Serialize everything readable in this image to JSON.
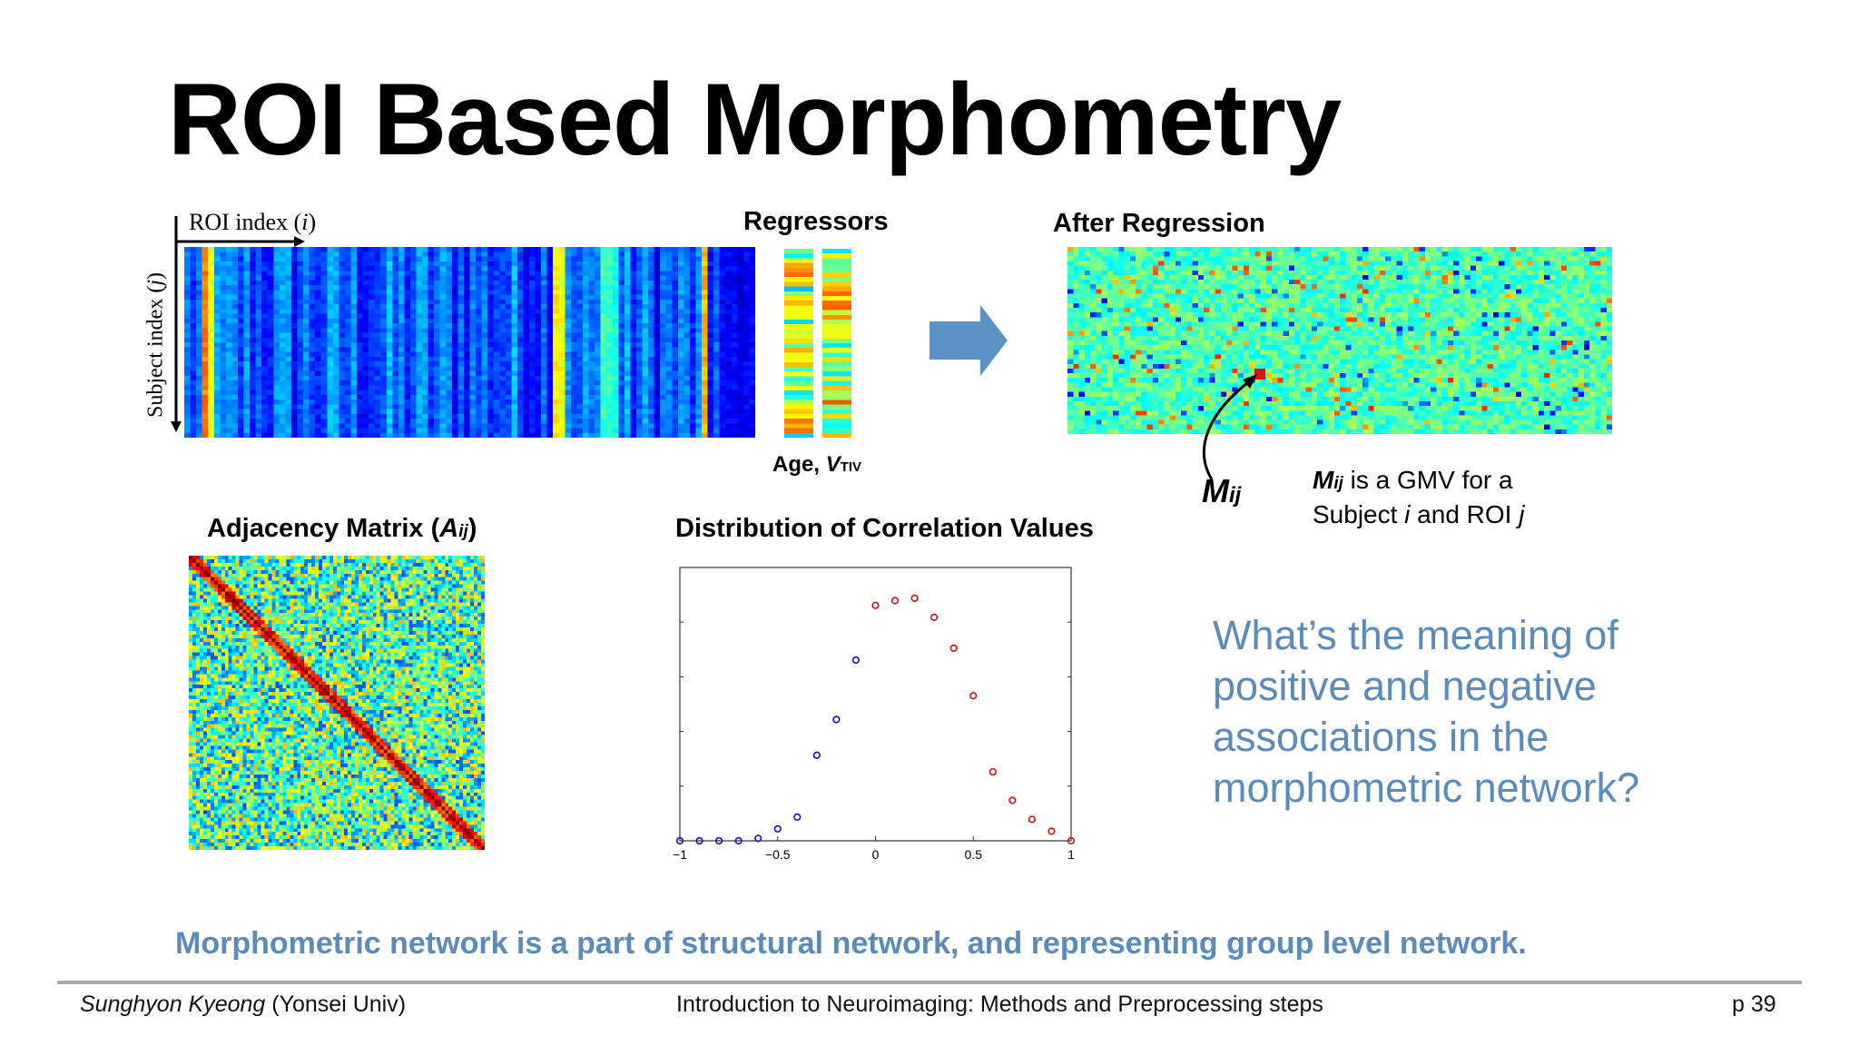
{
  "slide": {
    "title": "ROI Based Morphometry",
    "conclusion": "Morphometric network is a part of structural network, and representing group level network.",
    "question": "What’s the meaning of positive and negative associations in the morphometric network?"
  },
  "data_matrix": {
    "x_axis_label_prefix": "ROI index (",
    "x_axis_label_var": "i",
    "x_axis_label_suffix": ")",
    "y_axis_label_prefix": "Subject index (",
    "y_axis_label_var": "j",
    "y_axis_label_suffix": ")"
  },
  "regressors": {
    "title": "Regressors",
    "caption_age": "Age, ",
    "caption_v": "V",
    "caption_sub": "TIV"
  },
  "after_regression": {
    "title": "After Regression",
    "marker_label": "M",
    "marker_sub": "ij",
    "note_m": "M",
    "note_m_sub": "ij",
    "note_line1": " is a GMV for a",
    "note_line2_a": "Subject ",
    "note_line2_i": "i",
    "note_line2_b": " and ROI ",
    "note_line2_j": "j"
  },
  "adjacency": {
    "title_prefix": "Adjacency Matrix (",
    "title_var": "A",
    "title_sub": "ij",
    "title_suffix": ")"
  },
  "colors": {
    "accent_blue": "#5b8bbb",
    "arrow_fill": "#5a92c4",
    "positive_marker": "#cc1111",
    "negative_marker": "#1111bb"
  },
  "chart_data": {
    "type": "scatter",
    "title": "Distribution of Correlation Values",
    "xlabel": "",
    "ylabel": "",
    "xlim": [
      -1,
      1
    ],
    "ylim": [
      0,
      0.5
    ],
    "x_ticks": [
      -1,
      -0.5,
      0,
      0.5,
      1
    ],
    "x_tick_labels": [
      "−1",
      "−0.5",
      "0",
      "0.5",
      "1"
    ],
    "series": [
      {
        "color": "#1111bb",
        "points": [
          [
            -1,
            0.0
          ],
          [
            -0.9,
            0.0
          ],
          [
            -0.8,
            0.0
          ],
          [
            -0.7,
            0.0
          ],
          [
            -0.6,
            0.005
          ],
          [
            -0.5,
            0.025
          ],
          [
            -0.4,
            0.05
          ],
          [
            -0.3,
            0.18
          ],
          [
            -0.2,
            0.255
          ],
          [
            -0.1,
            0.38
          ]
        ]
      },
      {
        "color": "#cc1111",
        "points": [
          [
            0,
            0.495
          ],
          [
            0.1,
            0.505
          ],
          [
            0.2,
            0.51
          ],
          [
            0.3,
            0.47
          ],
          [
            0.4,
            0.405
          ],
          [
            0.5,
            0.305
          ],
          [
            0.6,
            0.145
          ],
          [
            0.7,
            0.085
          ],
          [
            0.8,
            0.045
          ],
          [
            0.9,
            0.02
          ],
          [
            1,
            0.0
          ]
        ]
      }
    ]
  },
  "footer": {
    "author": "Sunghyon Kyeong",
    "affiliation": " (Yonsei Univ)",
    "course": "Introduction to Neuroimaging: Methods and Preprocessing steps",
    "page": "p 39"
  }
}
